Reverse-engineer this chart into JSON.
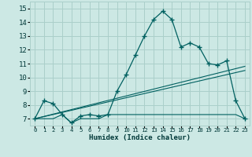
{
  "xlabel": "Humidex (Indice chaleur)",
  "bg_color": "#cce8e4",
  "grid_color": "#aacfca",
  "line_color": "#006060",
  "xlim": [
    -0.5,
    23.5
  ],
  "ylim": [
    6.5,
    15.5
  ],
  "xticks": [
    0,
    1,
    2,
    3,
    4,
    5,
    6,
    7,
    8,
    9,
    10,
    11,
    12,
    13,
    14,
    15,
    16,
    17,
    18,
    19,
    20,
    21,
    22,
    23
  ],
  "yticks": [
    7,
    8,
    9,
    10,
    11,
    12,
    13,
    14,
    15
  ],
  "curve1_x": [
    0,
    1,
    2,
    3,
    4,
    5,
    6,
    7,
    8,
    9,
    10,
    11,
    12,
    13,
    14,
    15,
    16,
    17,
    18,
    19,
    20,
    21,
    22,
    23
  ],
  "curve1_y": [
    7.0,
    8.3,
    8.1,
    7.3,
    6.7,
    7.2,
    7.3,
    7.2,
    7.3,
    9.0,
    10.2,
    11.6,
    13.0,
    14.2,
    14.8,
    14.2,
    12.2,
    12.5,
    12.2,
    11.0,
    10.9,
    11.2,
    8.3,
    7.0
  ],
  "curve2_x": [
    0,
    1,
    2,
    3,
    4,
    5,
    6,
    7,
    8,
    9,
    10,
    11,
    12,
    13,
    14,
    15,
    16,
    17,
    18,
    19,
    20,
    21,
    22,
    23
  ],
  "curve2_y": [
    7.0,
    7.0,
    7.0,
    7.3,
    6.7,
    7.0,
    7.0,
    7.0,
    7.3,
    7.3,
    7.3,
    7.3,
    7.3,
    7.3,
    7.3,
    7.3,
    7.3,
    7.3,
    7.3,
    7.3,
    7.3,
    7.3,
    7.3,
    7.0
  ],
  "line1_x": [
    0,
    23
  ],
  "line1_y": [
    7.0,
    10.5
  ],
  "line2_x": [
    0,
    23
  ],
  "line2_y": [
    7.0,
    10.8
  ]
}
